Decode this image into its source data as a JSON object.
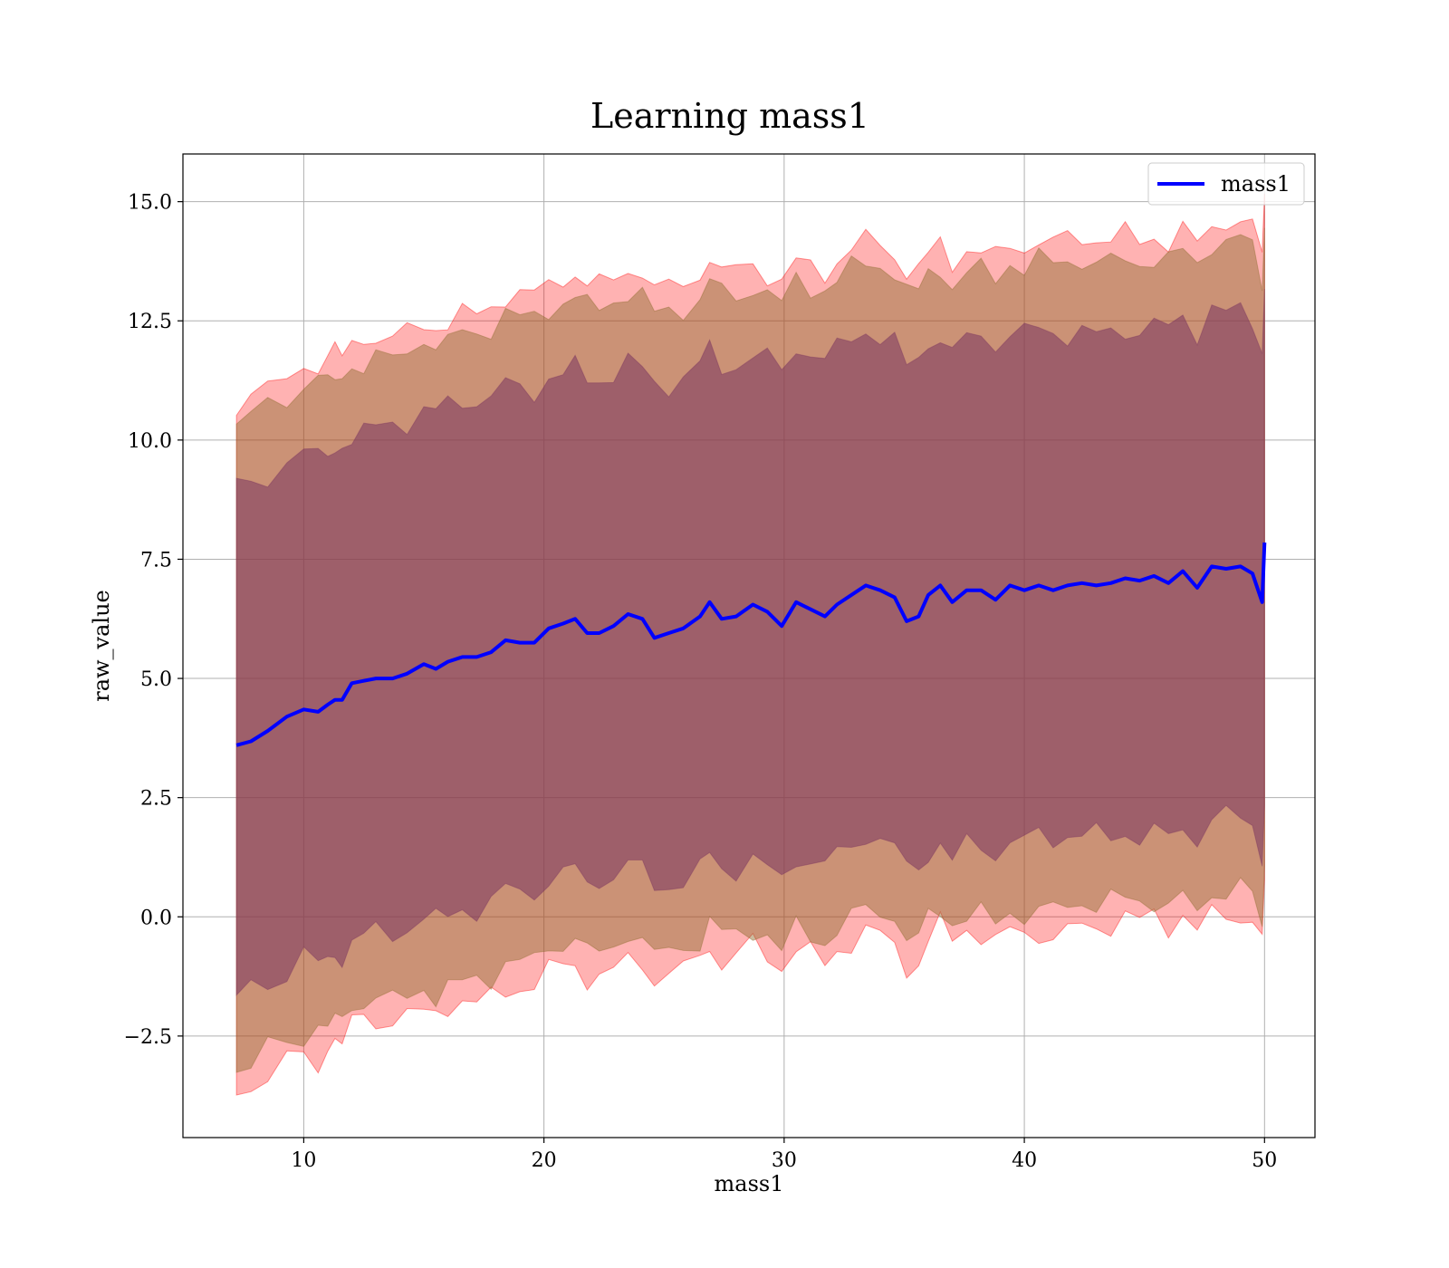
{
  "chart_data": {
    "type": "area",
    "title": "Learning mass1",
    "xlabel": "mass1",
    "ylabel": "raw_value",
    "xlim": [
      4.97,
      52.1
    ],
    "ylim": [
      -4.63,
      16.0
    ],
    "xticks": [
      10,
      20,
      30,
      40,
      50
    ],
    "xtick_labels": [
      "10",
      "20",
      "30",
      "40",
      "50"
    ],
    "yticks": [
      -2.5,
      0.0,
      2.5,
      5.0,
      7.5,
      10.0,
      12.5,
      15.0
    ],
    "ytick_labels": [
      "−2.5",
      "0.0",
      "2.5",
      "5.0",
      "7.5",
      "10.0",
      "12.5",
      "15.0"
    ],
    "grid": true,
    "legend": {
      "position": "top-right",
      "entries": [
        "mass1"
      ]
    },
    "colors": {
      "line": "#0000ff",
      "band_outer": "#ff0000",
      "band_middle": "#8c6b2c",
      "band_inner": "#7a3560",
      "grid": "#b0b0b0"
    },
    "x": [
      7.2,
      7.8,
      8.5,
      9.3,
      10.0,
      10.6,
      11.0,
      11.3,
      11.6,
      12.0,
      12.5,
      13.0,
      13.7,
      14.3,
      15.0,
      15.5,
      16.0,
      16.6,
      17.2,
      17.8,
      18.4,
      19.0,
      19.6,
      20.2,
      20.8,
      21.3,
      21.8,
      22.3,
      22.9,
      23.5,
      24.1,
      24.6,
      25.2,
      25.8,
      26.5,
      26.9,
      27.4,
      28.0,
      28.7,
      29.3,
      29.9,
      30.5,
      31.1,
      31.7,
      32.2,
      32.8,
      33.4,
      34.0,
      34.6,
      35.1,
      35.6,
      36.0,
      36.5,
      37.0,
      37.6,
      38.2,
      38.8,
      39.4,
      40.0,
      40.6,
      41.2,
      41.8,
      42.4,
      43.0,
      43.6,
      44.2,
      44.8,
      45.4,
      46.0,
      46.6,
      47.2,
      47.8,
      48.4,
      49.0,
      49.5,
      49.9,
      50.0
    ],
    "series": [
      {
        "name": "mass1",
        "values": [
          3.6,
          3.68,
          3.9,
          4.2,
          4.35,
          4.3,
          4.45,
          4.55,
          4.55,
          4.9,
          4.95,
          5.0,
          5.0,
          5.1,
          5.3,
          5.2,
          5.35,
          5.45,
          5.45,
          5.55,
          5.8,
          5.75,
          5.75,
          6.05,
          6.15,
          6.25,
          5.95,
          5.95,
          6.1,
          6.35,
          6.25,
          5.85,
          5.95,
          6.05,
          6.3,
          6.6,
          6.25,
          6.3,
          6.55,
          6.4,
          6.1,
          6.6,
          6.45,
          6.3,
          6.55,
          6.75,
          6.95,
          6.85,
          6.7,
          6.2,
          6.3,
          6.75,
          6.95,
          6.6,
          6.85,
          6.85,
          6.65,
          6.95,
          6.85,
          6.95,
          6.85,
          6.95,
          7.0,
          6.95,
          7.0,
          7.1,
          7.05,
          7.15,
          7.0,
          7.25,
          6.9,
          7.35,
          7.3,
          7.35,
          7.2,
          6.6,
          7.85
        ]
      }
    ],
    "bands": [
      {
        "level": "outer",
        "upper_offset": 7.2,
        "lower_offset": 7.2
      },
      {
        "level": "middle",
        "upper_offset": 6.75,
        "lower_offset": 6.75
      },
      {
        "level": "inner",
        "upper_offset": 5.3,
        "lower_offset": 5.3
      }
    ]
  }
}
